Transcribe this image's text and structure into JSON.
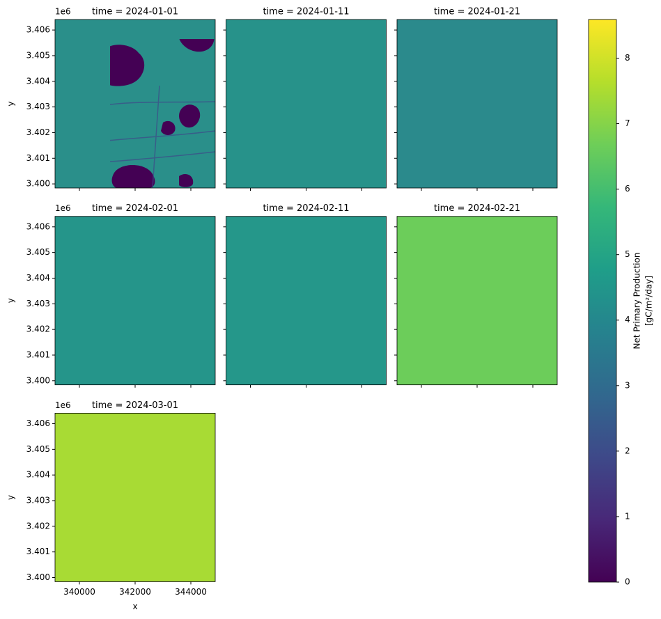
{
  "chart_data": {
    "type": "raster-facets",
    "panels": [
      {
        "title": "time = 2024-01-01",
        "color": "#2a8f8a"
      },
      {
        "title": "time = 2024-01-11",
        "color": "#27928a"
      },
      {
        "title": "time = 2024-01-21",
        "color": "#2b8a8c"
      },
      {
        "title": "time = 2024-02-01",
        "color": "#25958a"
      },
      {
        "title": "time = 2024-02-11",
        "color": "#25978a"
      },
      {
        "title": "time = 2024-02-21",
        "color": "#6ccd5a"
      },
      {
        "title": "time = 2024-03-01",
        "color": "#a8db34"
      }
    ],
    "xlabel": "x",
    "ylabel": "y",
    "y_offset_label": "1e6",
    "xlim": [
      339125,
      344875
    ],
    "xticks": [
      340000,
      342000,
      344000
    ],
    "ylim": [
      3.39984,
      3.40641
    ],
    "yticks": [
      {
        "value": 3.4,
        "label": "3.400"
      },
      3.401,
      3.402,
      3.403,
      3.404,
      3.405,
      3.406
    ],
    "colorbar": {
      "label": [
        "Net Primary Production",
        "[gC/m²/day]"
      ],
      "lim": [
        0,
        8.59
      ],
      "ticks": [
        0,
        1,
        2,
        3,
        4,
        5,
        6,
        7,
        8
      ],
      "colormap": [
        "#440154",
        "#482878",
        "#3e4989",
        "#31688e",
        "#26828e",
        "#1f9e89",
        "#35b779",
        "#6ece58",
        "#b5de2b",
        "#fde725"
      ]
    }
  }
}
